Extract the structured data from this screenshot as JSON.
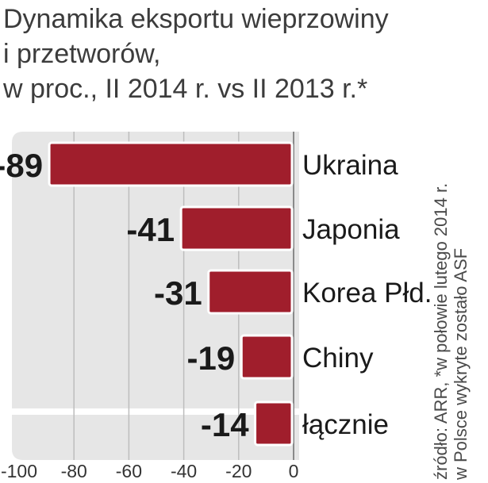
{
  "title_lines": [
    "Dynamika eksportu wieprzowiny",
    "i przetworów,",
    "w proc., II 2014 r. vs II 2013 r.*"
  ],
  "source_lines": [
    "źródło: ARR, *w połowie lutego 2014 r.",
    "w Polsce wykryte zostało ASF"
  ],
  "colors": {
    "bar": "#a01e2c",
    "panel": "#e6e6e6",
    "grid": "#bdbdbd"
  },
  "chart_data": {
    "type": "bar",
    "orientation": "horizontal",
    "categories": [
      "Ukraina",
      "Japonia",
      "Korea Płd.",
      "Chiny",
      "łącznie"
    ],
    "values": [
      -89,
      -41,
      -31,
      -19,
      -14
    ],
    "value_labels": [
      "-89",
      "-41",
      "-31",
      "-19",
      "-14"
    ],
    "xlim": [
      -100,
      0
    ],
    "xticks": [
      "-100",
      "-80",
      "-60",
      "-40",
      "-20",
      "0"
    ],
    "grid": true,
    "title": "Dynamika eksportu wieprzowiny i przetworów, w proc., II 2014 r. vs II 2013 r.*",
    "xlabel": "",
    "ylabel": ""
  }
}
